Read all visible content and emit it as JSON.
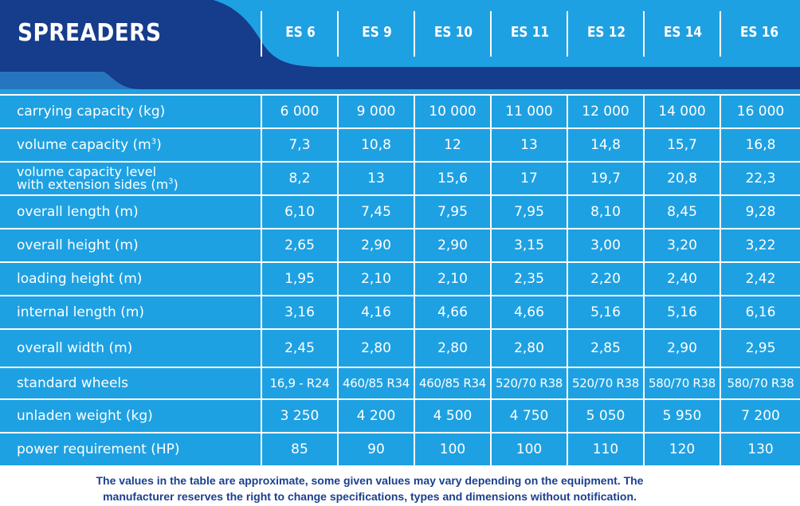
{
  "title": "SPREADERS",
  "models": [
    "ES 6",
    "ES 9",
    "ES 10",
    "ES 11",
    "ES 12",
    "ES 14",
    "ES 16"
  ],
  "rows": [
    {
      "label": "carrying capacity (kg)",
      "values": [
        "6 000",
        "9 000",
        "10 000",
        "11 000",
        "12 000",
        "14 000",
        "16 000"
      ]
    },
    {
      "label": "volume capacity (m",
      "sup": "3",
      "label_after": ")",
      "values": [
        "7,3",
        "10,8",
        "12",
        "13",
        "14,8",
        "15,7",
        "16,8"
      ]
    },
    {
      "label": "volume capacity level",
      "label2": "with extension sides (m",
      "sup": "3",
      "label_after": ")",
      "values": [
        "8,2",
        "13",
        "15,6",
        "17",
        "19,7",
        "20,8",
        "22,3"
      ]
    },
    {
      "label": "overall length (m)",
      "values": [
        "6,10",
        "7,45",
        "7,95",
        "7,95",
        "8,10",
        "8,45",
        "9,28"
      ]
    },
    {
      "label": "overall height (m)",
      "values": [
        "2,65",
        "2,90",
        "2,90",
        "3,15",
        "3,00",
        "3,20",
        "3,22"
      ]
    },
    {
      "label": "loading height (m)",
      "values": [
        "1,95",
        "2,10",
        "2,10",
        "2,35",
        "2,20",
        "2,40",
        "2,42"
      ]
    },
    {
      "label": "internal length (m)",
      "values": [
        "3,16",
        "4,16",
        "4,66",
        "4,66",
        "5,16",
        "5,16",
        "6,16"
      ]
    },
    {
      "label": "overall width (m)",
      "values": [
        "2,45",
        "2,80",
        "2,80",
        "2,80",
        "2,85",
        "2,90",
        "2,95"
      ]
    },
    {
      "label": "standard wheels",
      "values": [
        "16,9 - R24",
        "460/85 R34",
        "460/85 R34",
        "520/70 R38",
        "520/70 R38",
        "580/70 R38",
        "580/70 R38"
      ]
    },
    {
      "label": "unladen weight (kg)",
      "values": [
        "3 250",
        "4 200",
        "4 500",
        "4 750",
        "5 050",
        "5 950",
        "7 200"
      ]
    },
    {
      "label": "power requirement (HP)",
      "values": [
        "85",
        "90",
        "100",
        "100",
        "110",
        "120",
        "130"
      ]
    }
  ],
  "footnote_line1": "The values in the table are approximate, some given values may vary depending on the equipment. The",
  "footnote_line2": "manufacturer reserves the right to change specifications, types and dimensions without notification.",
  "colors": {
    "light_blue": "#1ea1e2",
    "dark_blue": "#163c8c",
    "text_blue": "#1b3f8f"
  }
}
